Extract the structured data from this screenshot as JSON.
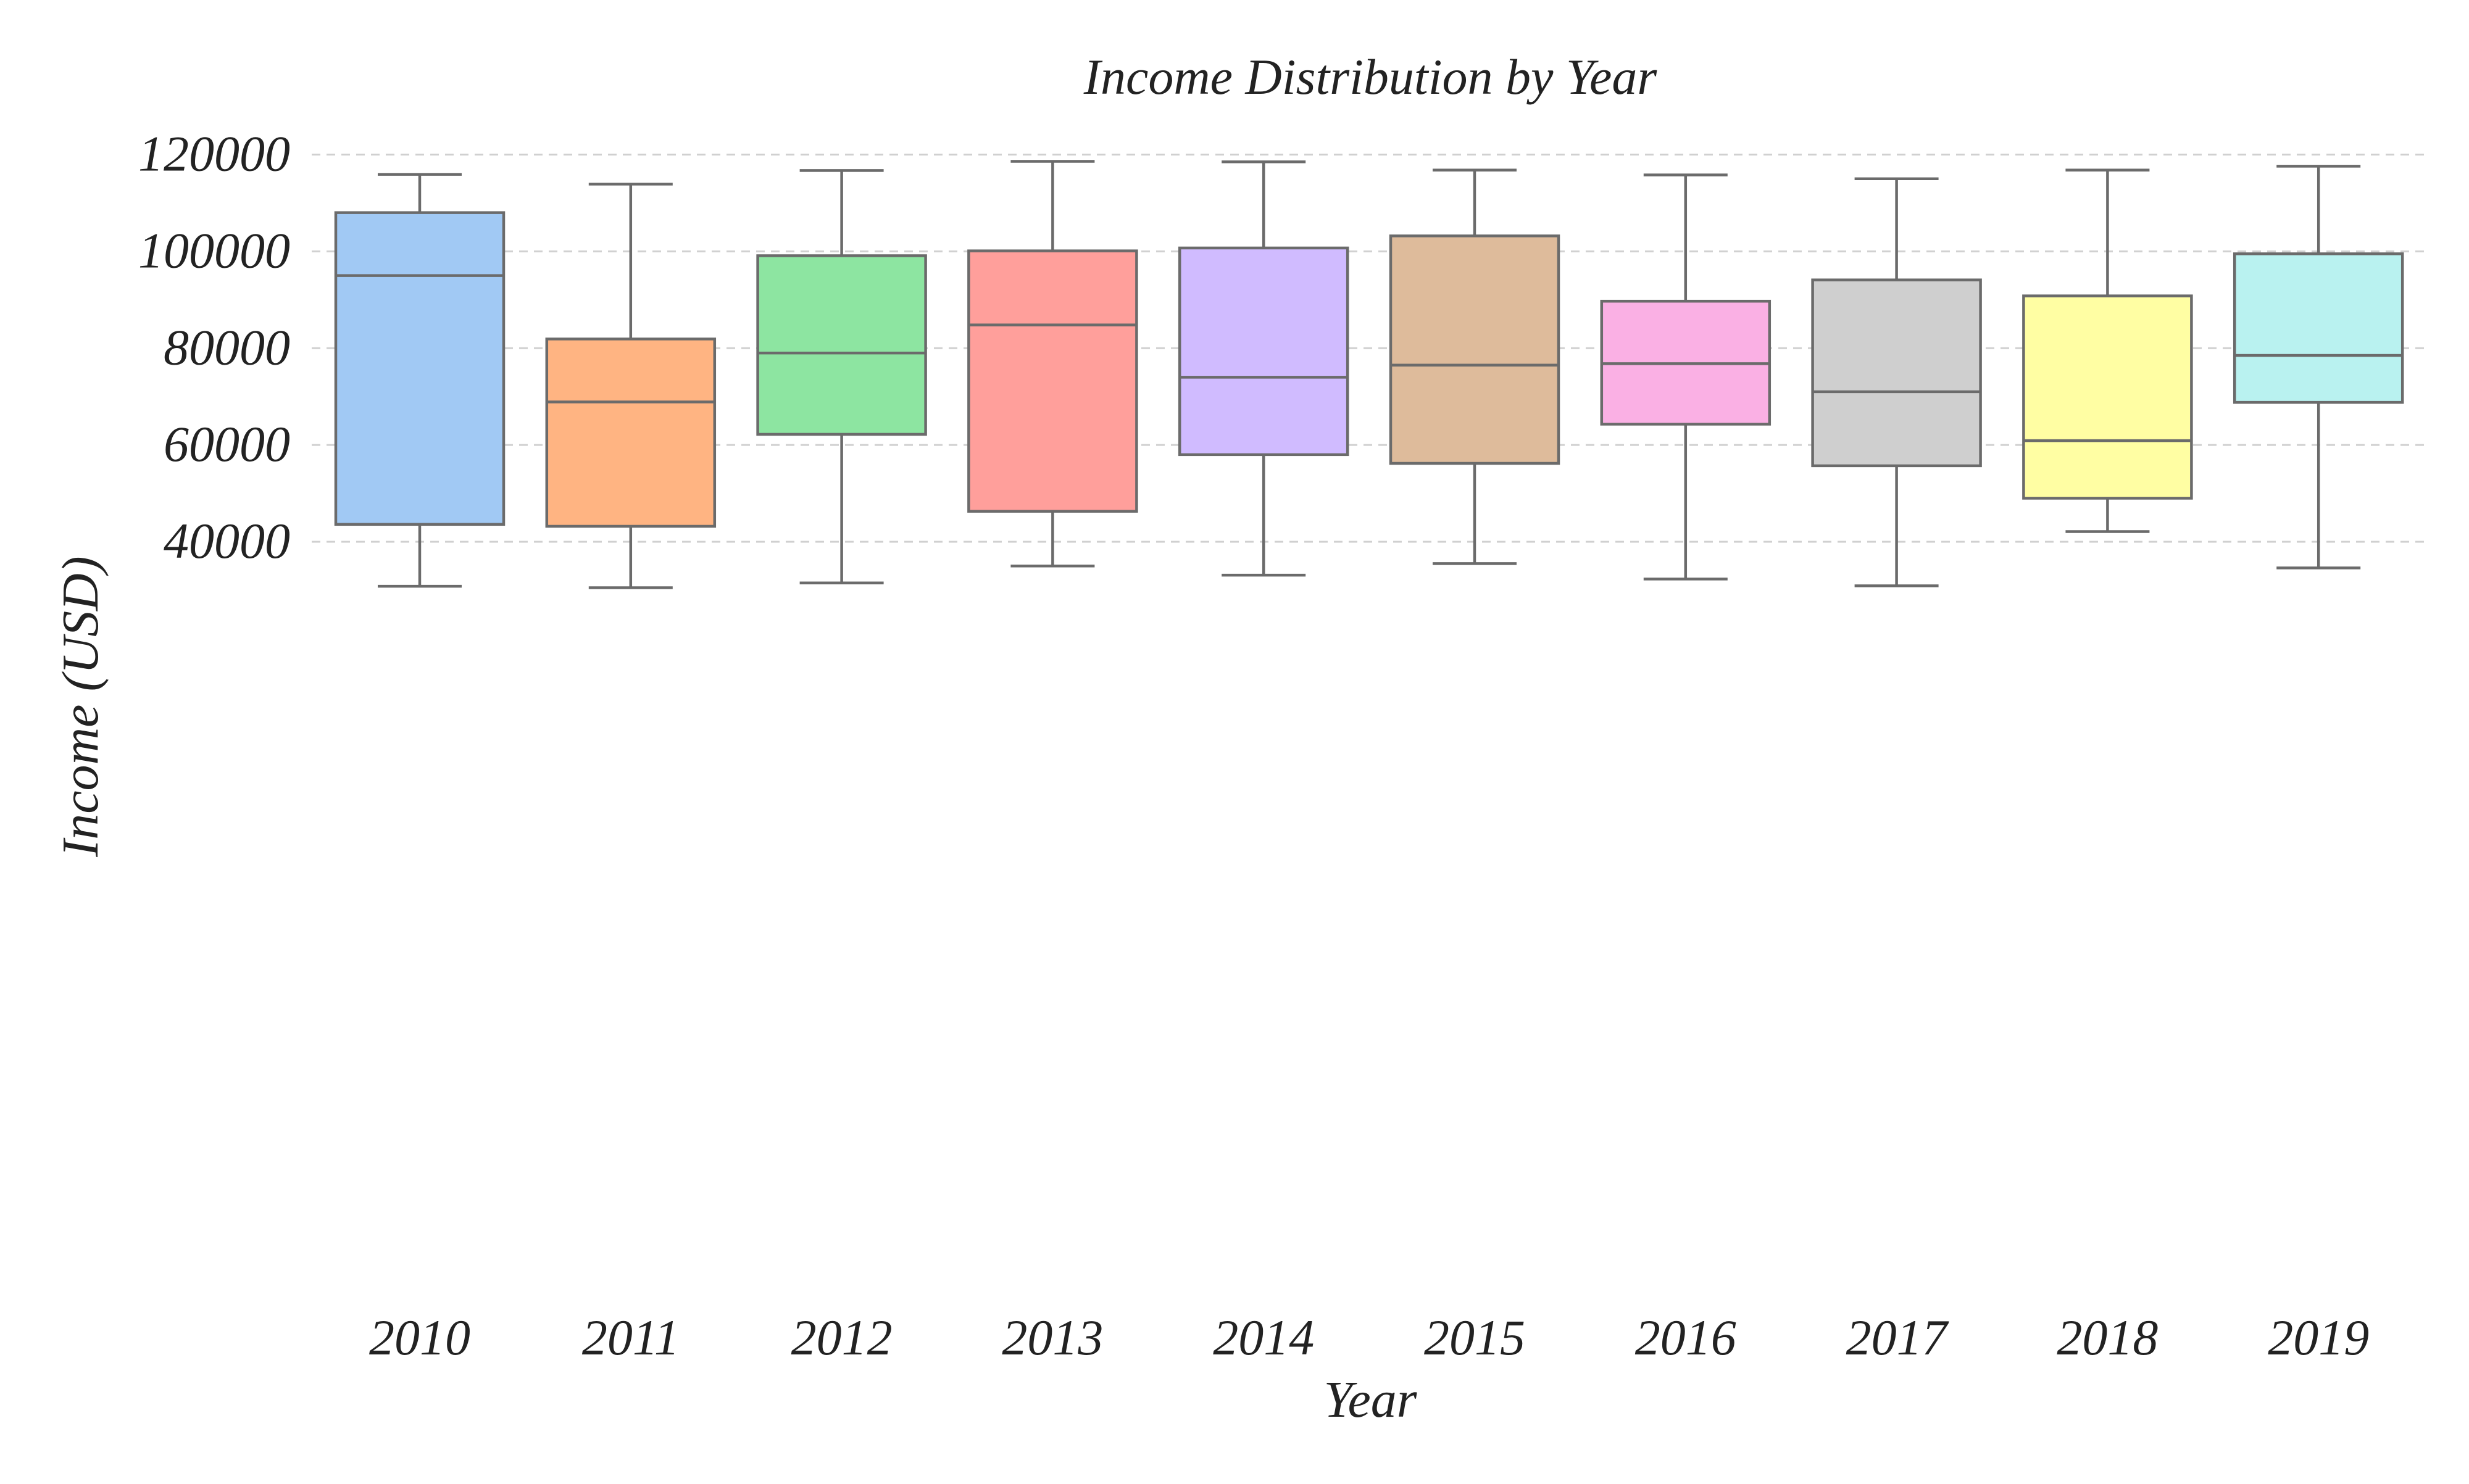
{
  "chart_data": {
    "type": "box",
    "title": "Income Distribution by Year",
    "xlabel": "Year",
    "ylabel": "Income (USD)",
    "ylim": [
      25000,
      122000
    ],
    "yticks": [
      40000,
      60000,
      80000,
      100000,
      120000
    ],
    "grid": "horizontal dashed",
    "categories": [
      "2010",
      "2011",
      "2012",
      "2013",
      "2014",
      "2015",
      "2016",
      "2017",
      "2018",
      "2019"
    ],
    "boxes": [
      {
        "category": "2010",
        "min": 30800,
        "q1": 43600,
        "median": 95000,
        "q3": 108000,
        "max": 115900,
        "color": "#a1c9f4"
      },
      {
        "category": "2011",
        "min": 30500,
        "q1": 43200,
        "median": 68900,
        "q3": 81900,
        "max": 113900,
        "color": "#ffb482"
      },
      {
        "category": "2012",
        "min": 31500,
        "q1": 62200,
        "median": 79000,
        "q3": 99100,
        "max": 116700,
        "color": "#8de5a1"
      },
      {
        "category": "2013",
        "min": 35000,
        "q1": 46300,
        "median": 84800,
        "q3": 100100,
        "max": 118600,
        "color": "#ff9f9b"
      },
      {
        "category": "2014",
        "min": 33100,
        "q1": 58000,
        "median": 74000,
        "q3": 100700,
        "max": 118500,
        "color": "#d0bbff"
      },
      {
        "category": "2015",
        "min": 35500,
        "q1": 56200,
        "median": 76500,
        "q3": 103200,
        "max": 116800,
        "color": "#debb9b"
      },
      {
        "category": "2016",
        "min": 32300,
        "q1": 64300,
        "median": 76800,
        "q3": 89700,
        "max": 115800,
        "color": "#fab0e4"
      },
      {
        "category": "2017",
        "min": 30900,
        "q1": 55700,
        "median": 71000,
        "q3": 94100,
        "max": 115000,
        "color": "#cfcfcf"
      },
      {
        "category": "2018",
        "min": 42100,
        "q1": 49000,
        "median": 60900,
        "q3": 90800,
        "max": 116800,
        "color": "#fffea3"
      },
      {
        "category": "2019",
        "min": 34600,
        "q1": 68800,
        "median": 78500,
        "q3": 99500,
        "max": 117600,
        "color": "#b9f2f0"
      }
    ]
  }
}
